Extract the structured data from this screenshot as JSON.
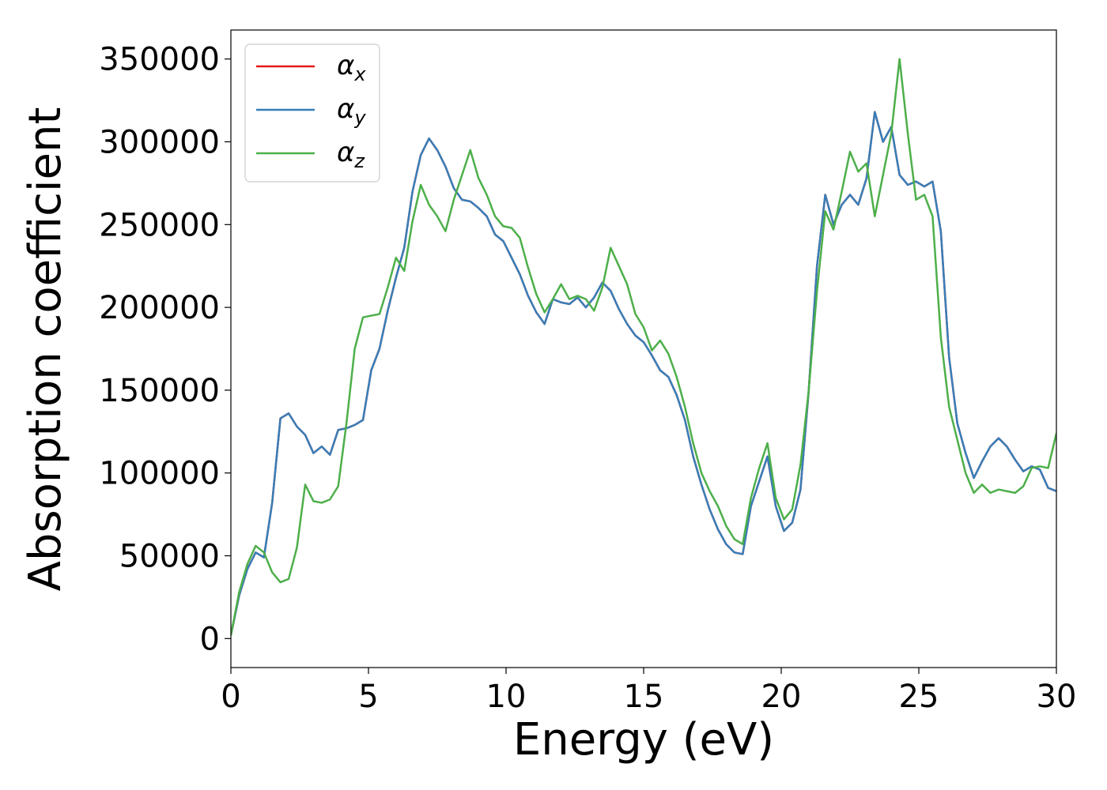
{
  "chart_data": {
    "type": "line",
    "xlabel": "Energy (eV)",
    "ylabel": "Absorption coefficient",
    "xlim": [
      0,
      30
    ],
    "ylim": [
      -17500,
      367500
    ],
    "x_ticks": [
      0,
      5,
      10,
      15,
      20,
      25,
      30
    ],
    "x_tick_labels": [
      "0",
      "5",
      "10",
      "15",
      "20",
      "25",
      "30"
    ],
    "y_ticks": [
      0,
      50000,
      100000,
      150000,
      200000,
      250000,
      300000,
      350000
    ],
    "y_tick_labels": [
      "0",
      "50000",
      "100000",
      "150000",
      "200000",
      "250000",
      "300000",
      "350000"
    ],
    "grid": false,
    "legend_position": "top-left",
    "series": [
      {
        "name": "α_x",
        "legend_main": "α",
        "legend_sub": "x",
        "color": "#e41a1c",
        "x": [
          0,
          0.3,
          0.6,
          0.9,
          1.2,
          1.5,
          1.8,
          2.1,
          2.4,
          2.7,
          3.0,
          3.3,
          3.6,
          3.9,
          4.2,
          4.5,
          4.8,
          5.1,
          5.4,
          5.7,
          6.0,
          6.3,
          6.6,
          6.9,
          7.2,
          7.5,
          7.8,
          8.1,
          8.4,
          8.7,
          9.0,
          9.3,
          9.6,
          9.9,
          10.2,
          10.5,
          10.8,
          11.1,
          11.4,
          11.7,
          12.0,
          12.3,
          12.6,
          12.9,
          13.2,
          13.5,
          13.8,
          14.1,
          14.4,
          14.7,
          15.0,
          15.3,
          15.6,
          15.9,
          16.2,
          16.5,
          16.8,
          17.1,
          17.4,
          17.7,
          18.0,
          18.3,
          18.6,
          18.9,
          19.2,
          19.5,
          19.8,
          20.1,
          20.4,
          20.7,
          21.0,
          21.3,
          21.6,
          21.9,
          22.2,
          22.5,
          22.8,
          23.1,
          23.4,
          23.7,
          24.0,
          24.3,
          24.6,
          24.9,
          25.2,
          25.5,
          25.8,
          26.1,
          26.4,
          26.7,
          27.0,
          27.3,
          27.6,
          27.9,
          28.2,
          28.5,
          28.8,
          29.1,
          29.4,
          29.7,
          30.0
        ],
        "y": [
          2000,
          26000,
          42000,
          52000,
          49000,
          82000,
          133000,
          136000,
          128000,
          123000,
          112000,
          116000,
          111000,
          126000,
          127000,
          129000,
          132000,
          162000,
          175000,
          198000,
          218000,
          236000,
          270000,
          292000,
          302000,
          295000,
          285000,
          272000,
          265000,
          264000,
          260000,
          255000,
          244000,
          240000,
          230000,
          220000,
          207000,
          197000,
          190000,
          205000,
          203000,
          202000,
          206000,
          200000,
          206000,
          215000,
          210000,
          199000,
          190000,
          183000,
          179000,
          171000,
          162000,
          158000,
          147000,
          132000,
          110000,
          93000,
          78000,
          66000,
          57000,
          52000,
          51000,
          80000,
          95000,
          110000,
          80000,
          65000,
          70000,
          90000,
          150000,
          225000,
          268000,
          250000,
          262000,
          268000,
          262000,
          278000,
          318000,
          300000,
          309000,
          280000,
          274000,
          276000,
          273000,
          276000,
          246000,
          170000,
          130000,
          112000,
          97000,
          107000,
          116000,
          121000,
          116000,
          108000,
          101000,
          104000,
          102000,
          91000,
          89000
        ]
      },
      {
        "name": "α_y",
        "legend_main": "α",
        "legend_sub": "y",
        "color": "#377eb8",
        "x": [
          0,
          0.3,
          0.6,
          0.9,
          1.2,
          1.5,
          1.8,
          2.1,
          2.4,
          2.7,
          3.0,
          3.3,
          3.6,
          3.9,
          4.2,
          4.5,
          4.8,
          5.1,
          5.4,
          5.7,
          6.0,
          6.3,
          6.6,
          6.9,
          7.2,
          7.5,
          7.8,
          8.1,
          8.4,
          8.7,
          9.0,
          9.3,
          9.6,
          9.9,
          10.2,
          10.5,
          10.8,
          11.1,
          11.4,
          11.7,
          12.0,
          12.3,
          12.6,
          12.9,
          13.2,
          13.5,
          13.8,
          14.1,
          14.4,
          14.7,
          15.0,
          15.3,
          15.6,
          15.9,
          16.2,
          16.5,
          16.8,
          17.1,
          17.4,
          17.7,
          18.0,
          18.3,
          18.6,
          18.9,
          19.2,
          19.5,
          19.8,
          20.1,
          20.4,
          20.7,
          21.0,
          21.3,
          21.6,
          21.9,
          22.2,
          22.5,
          22.8,
          23.1,
          23.4,
          23.7,
          24.0,
          24.3,
          24.6,
          24.9,
          25.2,
          25.5,
          25.8,
          26.1,
          26.4,
          26.7,
          27.0,
          27.3,
          27.6,
          27.9,
          28.2,
          28.5,
          28.8,
          29.1,
          29.4,
          29.7,
          30.0
        ],
        "y": [
          2000,
          26000,
          42000,
          52000,
          49000,
          82000,
          133000,
          136000,
          128000,
          123000,
          112000,
          116000,
          111000,
          126000,
          127000,
          129000,
          132000,
          162000,
          175000,
          198000,
          218000,
          236000,
          270000,
          292000,
          302000,
          295000,
          285000,
          272000,
          265000,
          264000,
          260000,
          255000,
          244000,
          240000,
          230000,
          220000,
          207000,
          197000,
          190000,
          205000,
          203000,
          202000,
          206000,
          200000,
          206000,
          215000,
          210000,
          199000,
          190000,
          183000,
          179000,
          171000,
          162000,
          158000,
          147000,
          132000,
          110000,
          93000,
          78000,
          66000,
          57000,
          52000,
          51000,
          80000,
          95000,
          110000,
          80000,
          65000,
          70000,
          90000,
          150000,
          225000,
          268000,
          250000,
          262000,
          268000,
          262000,
          278000,
          318000,
          300000,
          309000,
          280000,
          274000,
          276000,
          273000,
          276000,
          246000,
          170000,
          130000,
          112000,
          97000,
          107000,
          116000,
          121000,
          116000,
          108000,
          101000,
          104000,
          102000,
          91000,
          89000
        ]
      },
      {
        "name": "α_z",
        "legend_main": "α",
        "legend_sub": "z",
        "color": "#4daf4a",
        "x": [
          0,
          0.3,
          0.6,
          0.9,
          1.2,
          1.5,
          1.8,
          2.1,
          2.4,
          2.7,
          3.0,
          3.3,
          3.6,
          3.9,
          4.2,
          4.5,
          4.8,
          5.1,
          5.4,
          5.7,
          6.0,
          6.3,
          6.6,
          6.9,
          7.2,
          7.5,
          7.8,
          8.1,
          8.4,
          8.7,
          9.0,
          9.3,
          9.6,
          9.9,
          10.2,
          10.5,
          10.8,
          11.1,
          11.4,
          11.7,
          12.0,
          12.3,
          12.6,
          12.9,
          13.2,
          13.5,
          13.8,
          14.1,
          14.4,
          14.7,
          15.0,
          15.3,
          15.6,
          15.9,
          16.2,
          16.5,
          16.8,
          17.1,
          17.4,
          17.7,
          18.0,
          18.3,
          18.6,
          18.9,
          19.2,
          19.5,
          19.8,
          20.1,
          20.4,
          20.7,
          21.0,
          21.3,
          21.6,
          21.9,
          22.2,
          22.5,
          22.8,
          23.1,
          23.4,
          23.7,
          24.0,
          24.3,
          24.6,
          24.9,
          25.2,
          25.5,
          25.8,
          26.1,
          26.4,
          26.7,
          27.0,
          27.3,
          27.6,
          27.9,
          28.2,
          28.5,
          28.8,
          29.1,
          29.4,
          29.7,
          30.0
        ],
        "y": [
          2000,
          28000,
          45000,
          56000,
          52000,
          40000,
          34000,
          36000,
          55000,
          93000,
          83000,
          82000,
          84000,
          92000,
          130000,
          175000,
          194000,
          195000,
          196000,
          212000,
          230000,
          222000,
          252000,
          274000,
          262000,
          255000,
          246000,
          265000,
          280000,
          295000,
          278000,
          268000,
          255000,
          249000,
          248000,
          242000,
          224000,
          208000,
          197000,
          205000,
          214000,
          205000,
          207000,
          205000,
          198000,
          212000,
          236000,
          225000,
          214000,
          196000,
          188000,
          174000,
          180000,
          172000,
          158000,
          140000,
          118000,
          100000,
          89000,
          80000,
          68000,
          60000,
          57000,
          85000,
          103000,
          118000,
          85000,
          72000,
          78000,
          105000,
          150000,
          210000,
          258000,
          247000,
          270000,
          294000,
          282000,
          287000,
          255000,
          280000,
          305000,
          350000,
          305000,
          265000,
          268000,
          255000,
          182000,
          140000,
          120000,
          100000,
          88000,
          93000,
          88000,
          90000,
          89000,
          88000,
          92000,
          103000,
          104000,
          103000,
          124000
        ]
      }
    ]
  }
}
